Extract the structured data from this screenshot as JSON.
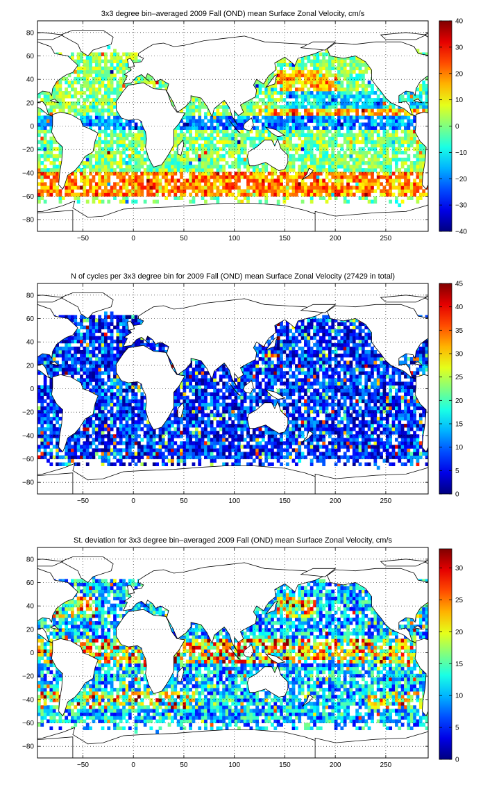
{
  "chart_data": [
    {
      "type": "heatmap",
      "title": "3x3 degree bin–averaged 2009 Fall (OND) mean Surface Zonal Velocity, cm/s",
      "x_ticks": [
        -50,
        0,
        50,
        100,
        150,
        200,
        250
      ],
      "y_ticks": [
        -80,
        -60,
        -40,
        -20,
        0,
        20,
        40,
        60,
        80
      ],
      "xlim": [
        -95,
        292
      ],
      "ylim": [
        -90,
        90
      ],
      "bin_size_deg": 3,
      "colorbar": {
        "min": -40,
        "max": 40,
        "ticks": [
          -40,
          -30,
          -20,
          -10,
          0,
          10,
          20,
          30,
          40
        ],
        "colormap": "jet"
      },
      "grid": true
    },
    {
      "type": "heatmap",
      "title": "N of cycles per 3x3 degree bin for 2009 Fall (OND) mean Surface Zonal Velocity (27429 in total)",
      "x_ticks": [
        -50,
        0,
        50,
        100,
        150,
        200,
        250
      ],
      "y_ticks": [
        -80,
        -60,
        -40,
        -20,
        0,
        20,
        40,
        60,
        80
      ],
      "xlim": [
        -95,
        292
      ],
      "ylim": [
        -90,
        90
      ],
      "bin_size_deg": 3,
      "colorbar": {
        "min": 0,
        "max": 45,
        "ticks": [
          0,
          5,
          10,
          15,
          20,
          25,
          30,
          35,
          40,
          45
        ],
        "colormap": "jet"
      },
      "grid": true
    },
    {
      "type": "heatmap",
      "title": "St. deviation for 3x3 degree bin–averaged 2009 Fall (OND) mean Surface Zonal Velocity, cm/s",
      "x_ticks": [
        -50,
        0,
        50,
        100,
        150,
        200,
        250
      ],
      "y_ticks": [
        -80,
        -60,
        -40,
        -20,
        0,
        20,
        40,
        60,
        80
      ],
      "xlim": [
        -95,
        292
      ],
      "ylim": [
        -90,
        90
      ],
      "bin_size_deg": 3,
      "colorbar": {
        "min": 0,
        "max": 33,
        "ticks": [
          0,
          5,
          10,
          15,
          20,
          25,
          30
        ],
        "colormap": "jet"
      },
      "grid": true
    }
  ]
}
